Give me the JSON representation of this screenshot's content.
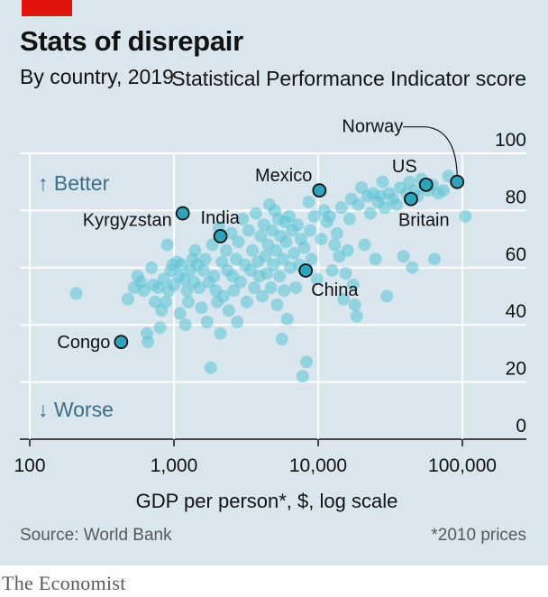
{
  "publisher": "The Economist",
  "source": "Source: World Bank",
  "footnote": "*2010 prices",
  "colors": {
    "dot": "#57c3d6",
    "highlight": "#2aa5bb",
    "background": "#d9e6ee",
    "accent": "#e3120b"
  },
  "chart_data": {
    "type": "scatter",
    "title": "Stats of disrepair",
    "subtitle": "By country, 2019",
    "ylabel": "Statistical Performance Indicator score",
    "xlabel": "GDP per person*, $, log scale",
    "xscale": "log",
    "xlim": [
      100,
      100000
    ],
    "ylim": [
      0,
      100
    ],
    "xticks": [
      "100",
      "1,000",
      "10,000",
      "100,000"
    ],
    "yticks": [
      "0",
      "20",
      "40",
      "60",
      "80",
      "100"
    ],
    "direction_labels": {
      "up": "↑ Better",
      "down": "↓ Worse"
    },
    "grid": true,
    "highlighted": [
      {
        "name": "Norway",
        "x": 92000,
        "y": 90
      },
      {
        "name": "US",
        "x": 56000,
        "y": 89
      },
      {
        "name": "Mexico",
        "x": 10200,
        "y": 87
      },
      {
        "name": "Britain",
        "x": 44000,
        "y": 84
      },
      {
        "name": "Kyrgyzstan",
        "x": 1150,
        "y": 79
      },
      {
        "name": "India",
        "x": 2100,
        "y": 71
      },
      {
        "name": "China",
        "x": 8200,
        "y": 59
      },
      {
        "name": "Congo",
        "x": 430,
        "y": 34
      }
    ],
    "points": [
      [
        210,
        51
      ],
      [
        480,
        49
      ],
      [
        530,
        53
      ],
      [
        560,
        57
      ],
      [
        590,
        55
      ],
      [
        620,
        52
      ],
      [
        650,
        37
      ],
      [
        660,
        34
      ],
      [
        700,
        60
      ],
      [
        720,
        54
      ],
      [
        740,
        48
      ],
      [
        780,
        53
      ],
      [
        800,
        39
      ],
      [
        820,
        45
      ],
      [
        850,
        56
      ],
      [
        880,
        48
      ],
      [
        900,
        68
      ],
      [
        920,
        52
      ],
      [
        950,
        59
      ],
      [
        980,
        61
      ],
      [
        1000,
        54
      ],
      [
        1050,
        62
      ],
      [
        1080,
        57
      ],
      [
        1100,
        44
      ],
      [
        1130,
        61
      ],
      [
        1180,
        56
      ],
      [
        1200,
        40
      ],
      [
        1230,
        52
      ],
      [
        1260,
        48
      ],
      [
        1300,
        59
      ],
      [
        1350,
        63
      ],
      [
        1380,
        55
      ],
      [
        1400,
        66
      ],
      [
        1450,
        61
      ],
      [
        1500,
        53
      ],
      [
        1550,
        46
      ],
      [
        1600,
        59
      ],
      [
        1650,
        63
      ],
      [
        1700,
        41
      ],
      [
        1750,
        55
      ],
      [
        1800,
        25
      ],
      [
        1850,
        68
      ],
      [
        1900,
        57
      ],
      [
        1950,
        52
      ],
      [
        2000,
        48
      ],
      [
        2050,
        74
      ],
      [
        2100,
        37
      ],
      [
        2150,
        62
      ],
      [
        2200,
        50
      ],
      [
        2300,
        66
      ],
      [
        2350,
        59
      ],
      [
        2400,
        45
      ],
      [
        2500,
        72
      ],
      [
        2550,
        57
      ],
      [
        2600,
        52
      ],
      [
        2700,
        63
      ],
      [
        2750,
        41
      ],
      [
        2800,
        69
      ],
      [
        2900,
        55
      ],
      [
        3000,
        77
      ],
      [
        3100,
        61
      ],
      [
        3200,
        48
      ],
      [
        3300,
        73
      ],
      [
        3400,
        59
      ],
      [
        3500,
        66
      ],
      [
        3600,
        53
      ],
      [
        3700,
        79
      ],
      [
        3800,
        62
      ],
      [
        3900,
        57
      ],
      [
        4000,
        71
      ],
      [
        4100,
        50
      ],
      [
        4200,
        75
      ],
      [
        4300,
        64
      ],
      [
        4400,
        58
      ],
      [
        4500,
        68
      ],
      [
        4600,
        82
      ],
      [
        4700,
        53
      ],
      [
        4800,
        73
      ],
      [
        4900,
        61
      ],
      [
        5000,
        80
      ],
      [
        5100,
        66
      ],
      [
        5200,
        47
      ],
      [
        5300,
        77
      ],
      [
        5400,
        57
      ],
      [
        5500,
        71
      ],
      [
        5600,
        35
      ],
      [
        5700,
        63
      ],
      [
        5800,
        52
      ],
      [
        5900,
        76
      ],
      [
        6000,
        69
      ],
      [
        6100,
        42
      ],
      [
        6300,
        78
      ],
      [
        6400,
        60
      ],
      [
        6600,
        73
      ],
      [
        6800,
        65
      ],
      [
        7000,
        53
      ],
      [
        7200,
        75
      ],
      [
        7400,
        61
      ],
      [
        7600,
        70
      ],
      [
        7800,
        22
      ],
      [
        8000,
        67
      ],
      [
        8300,
        27
      ],
      [
        8600,
        83
      ],
      [
        8800,
        73
      ],
      [
        9000,
        63
      ],
      [
        9400,
        78
      ],
      [
        9800,
        56
      ],
      [
        10500,
        70
      ],
      [
        11000,
        80
      ],
      [
        11500,
        76
      ],
      [
        12000,
        78
      ],
      [
        12500,
        59
      ],
      [
        13000,
        68
      ],
      [
        13500,
        72
      ],
      [
        14000,
        64
      ],
      [
        14500,
        81
      ],
      [
        15000,
        49
      ],
      [
        15500,
        58
      ],
      [
        16000,
        66
      ],
      [
        16500,
        77
      ],
      [
        17000,
        84
      ],
      [
        17500,
        54
      ],
      [
        18000,
        47
      ],
      [
        18500,
        43
      ],
      [
        19000,
        82
      ],
      [
        20000,
        88
      ],
      [
        21000,
        68
      ],
      [
        22000,
        85
      ],
      [
        23000,
        79
      ],
      [
        24000,
        86
      ],
      [
        25000,
        63
      ],
      [
        26000,
        83
      ],
      [
        27000,
        85
      ],
      [
        28000,
        90
      ],
      [
        29000,
        81
      ],
      [
        30000,
        50
      ],
      [
        31000,
        86
      ],
      [
        33000,
        84
      ],
      [
        35000,
        82
      ],
      [
        37000,
        88
      ],
      [
        39000,
        64
      ],
      [
        41000,
        86
      ],
      [
        43000,
        90
      ],
      [
        45000,
        60
      ],
      [
        47000,
        87
      ],
      [
        49000,
        85
      ],
      [
        52000,
        91
      ],
      [
        58000,
        87
      ],
      [
        62000,
        89
      ],
      [
        64000,
        63
      ],
      [
        68000,
        86
      ],
      [
        74000,
        87
      ],
      [
        80000,
        92
      ],
      [
        105000,
        78
      ]
    ]
  }
}
